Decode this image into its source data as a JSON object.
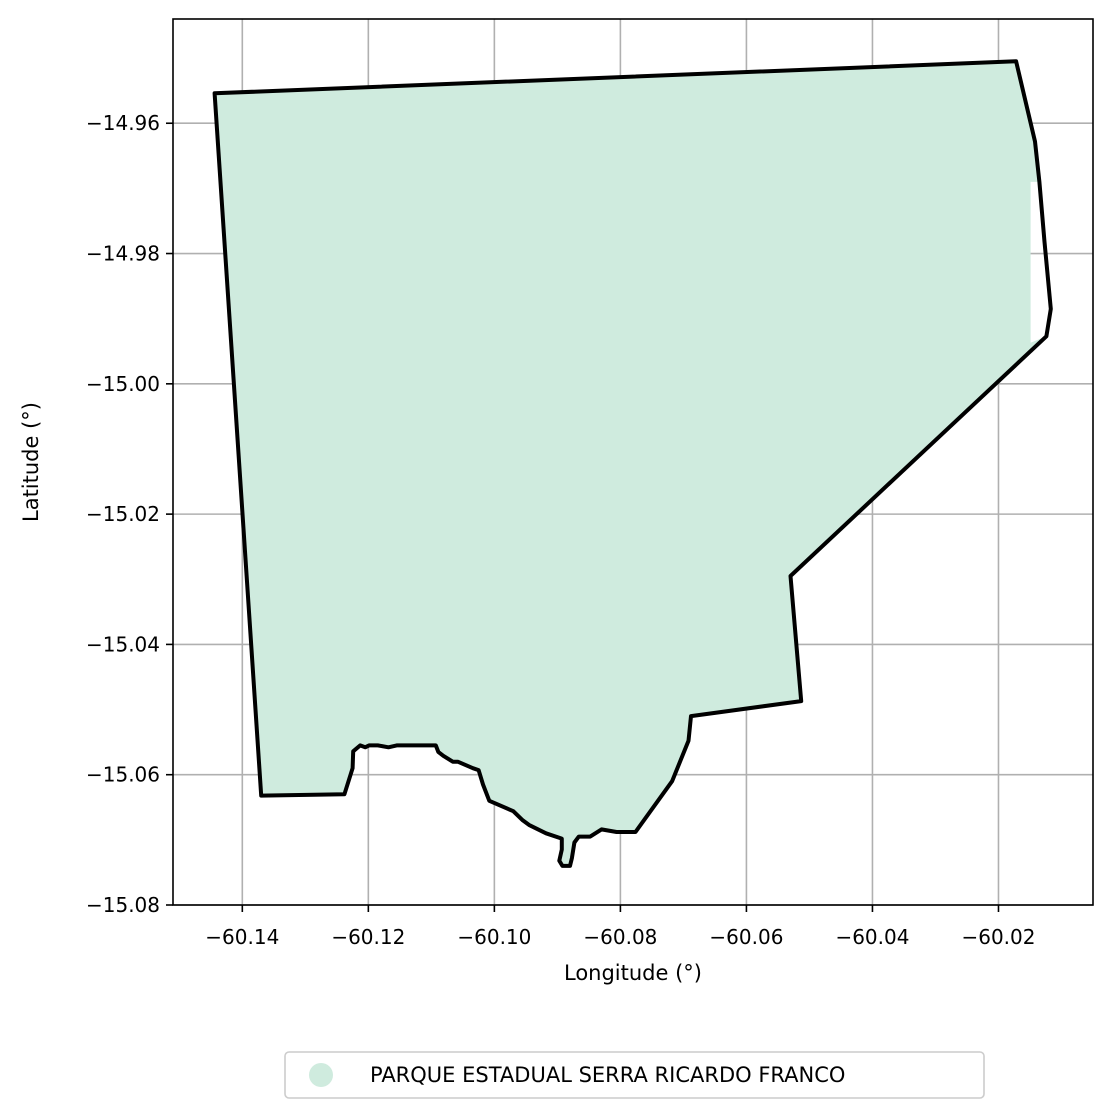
{
  "chart_data": {
    "type": "map",
    "xlabel": "Longitude (°)",
    "ylabel": "Latitude (°)",
    "xlim": [
      -60.151,
      -60.005
    ],
    "ylim": [
      -15.08,
      -14.944
    ],
    "xticks": [
      -60.14,
      -60.12,
      -60.1,
      -60.08,
      -60.06,
      -60.04,
      -60.02
    ],
    "xtick_labels": [
      "−60.14",
      "−60.12",
      "−60.10",
      "−60.08",
      "−60.06",
      "−60.04",
      "−60.02"
    ],
    "yticks": [
      -14.96,
      -14.98,
      -15.0,
      -15.02,
      -15.04,
      -15.06,
      -15.08
    ],
    "ytick_labels": [
      "−14.96",
      "−14.98",
      "−15.00",
      "−15.02",
      "−15.04",
      "−15.06",
      "−15.08"
    ],
    "grid": true,
    "legend_position": "bottom-center, below axes",
    "series": [
      {
        "name": "PARQUE ESTADUAL SERRA RICARDO FRANCO",
        "fill_color": "#cfebde",
        "edge_color": "#000000",
        "boundary": [
          [
            -60.1444,
            -14.9554
          ],
          [
            -60.0172,
            -14.9505
          ],
          [
            -60.0142,
            -14.9628
          ],
          [
            -60.0135,
            -14.969
          ],
          [
            -60.0127,
            -14.9782
          ],
          [
            -60.0117,
            -14.9885
          ],
          [
            -60.0124,
            -14.9927
          ],
          [
            -60.053,
            -15.0295
          ],
          [
            -60.0513,
            -15.0487
          ],
          [
            -60.0688,
            -15.051
          ],
          [
            -60.0692,
            -15.0548
          ],
          [
            -60.0718,
            -15.061
          ],
          [
            -60.0776,
            -15.0688
          ],
          [
            -60.0806,
            -15.0688
          ],
          [
            -60.083,
            -15.0684
          ],
          [
            -60.0848,
            -15.0695
          ],
          [
            -60.0866,
            -15.0695
          ],
          [
            -60.0873,
            -15.0704
          ],
          [
            -60.0877,
            -15.0728
          ],
          [
            -60.088,
            -15.074
          ],
          [
            -60.0892,
            -15.074
          ],
          [
            -60.0897,
            -15.0732
          ],
          [
            -60.0893,
            -15.0715
          ],
          [
            -60.0893,
            -15.0698
          ],
          [
            -60.0918,
            -15.069
          ],
          [
            -60.0945,
            -15.0677
          ],
          [
            -60.0955,
            -15.067
          ],
          [
            -60.097,
            -15.0656
          ],
          [
            -60.1008,
            -15.064
          ],
          [
            -60.1018,
            -15.0615
          ],
          [
            -60.1025,
            -15.0593
          ],
          [
            -60.1034,
            -15.059
          ],
          [
            -60.1058,
            -15.058
          ],
          [
            -60.1066,
            -15.058
          ],
          [
            -60.1081,
            -15.0571
          ],
          [
            -60.1089,
            -15.0565
          ],
          [
            -60.1093,
            -15.0555
          ],
          [
            -60.1155,
            -15.0555
          ],
          [
            -60.1168,
            -15.0558
          ],
          [
            -60.1185,
            -15.0555
          ],
          [
            -60.1199,
            -15.0555
          ],
          [
            -60.1205,
            -15.0558
          ],
          [
            -60.1213,
            -15.0555
          ],
          [
            -60.1224,
            -15.0564
          ],
          [
            -60.1225,
            -15.059
          ],
          [
            -60.1238,
            -15.063
          ],
          [
            -60.137,
            -15.0632
          ],
          [
            -60.1444,
            -14.9554
          ]
        ],
        "fill_boundary": [
          [
            -60.1444,
            -14.9554
          ],
          [
            -60.0172,
            -14.9505
          ],
          [
            -60.0142,
            -14.9628
          ],
          [
            -60.0135,
            -14.969
          ],
          [
            -60.0149,
            -14.969
          ],
          [
            -60.0149,
            -14.9937
          ],
          [
            -60.0124,
            -14.9927
          ],
          [
            -60.053,
            -15.0295
          ],
          [
            -60.0513,
            -15.0487
          ],
          [
            -60.0688,
            -15.051
          ],
          [
            -60.0692,
            -15.0548
          ],
          [
            -60.0718,
            -15.061
          ],
          [
            -60.0776,
            -15.0688
          ],
          [
            -60.0806,
            -15.0688
          ],
          [
            -60.083,
            -15.0684
          ],
          [
            -60.0848,
            -15.0695
          ],
          [
            -60.0866,
            -15.0695
          ],
          [
            -60.0873,
            -15.0704
          ],
          [
            -60.0877,
            -15.0728
          ],
          [
            -60.088,
            -15.074
          ],
          [
            -60.0892,
            -15.074
          ],
          [
            -60.0897,
            -15.0732
          ],
          [
            -60.0893,
            -15.0715
          ],
          [
            -60.0893,
            -15.0698
          ],
          [
            -60.0918,
            -15.069
          ],
          [
            -60.0945,
            -15.0677
          ],
          [
            -60.0955,
            -15.067
          ],
          [
            -60.097,
            -15.0656
          ],
          [
            -60.1008,
            -15.064
          ],
          [
            -60.1018,
            -15.0615
          ],
          [
            -60.1025,
            -15.0593
          ],
          [
            -60.1034,
            -15.059
          ],
          [
            -60.1058,
            -15.058
          ],
          [
            -60.1066,
            -15.058
          ],
          [
            -60.1081,
            -15.0571
          ],
          [
            -60.1089,
            -15.0565
          ],
          [
            -60.1093,
            -15.0555
          ],
          [
            -60.1155,
            -15.0555
          ],
          [
            -60.1168,
            -15.0558
          ],
          [
            -60.1185,
            -15.0555
          ],
          [
            -60.1199,
            -15.0555
          ],
          [
            -60.1205,
            -15.0558
          ],
          [
            -60.1213,
            -15.0555
          ],
          [
            -60.1224,
            -15.0564
          ],
          [
            -60.1225,
            -15.059
          ],
          [
            -60.1238,
            -15.063
          ],
          [
            -60.137,
            -15.0632
          ],
          [
            -60.1444,
            -14.9554
          ]
        ]
      }
    ]
  }
}
